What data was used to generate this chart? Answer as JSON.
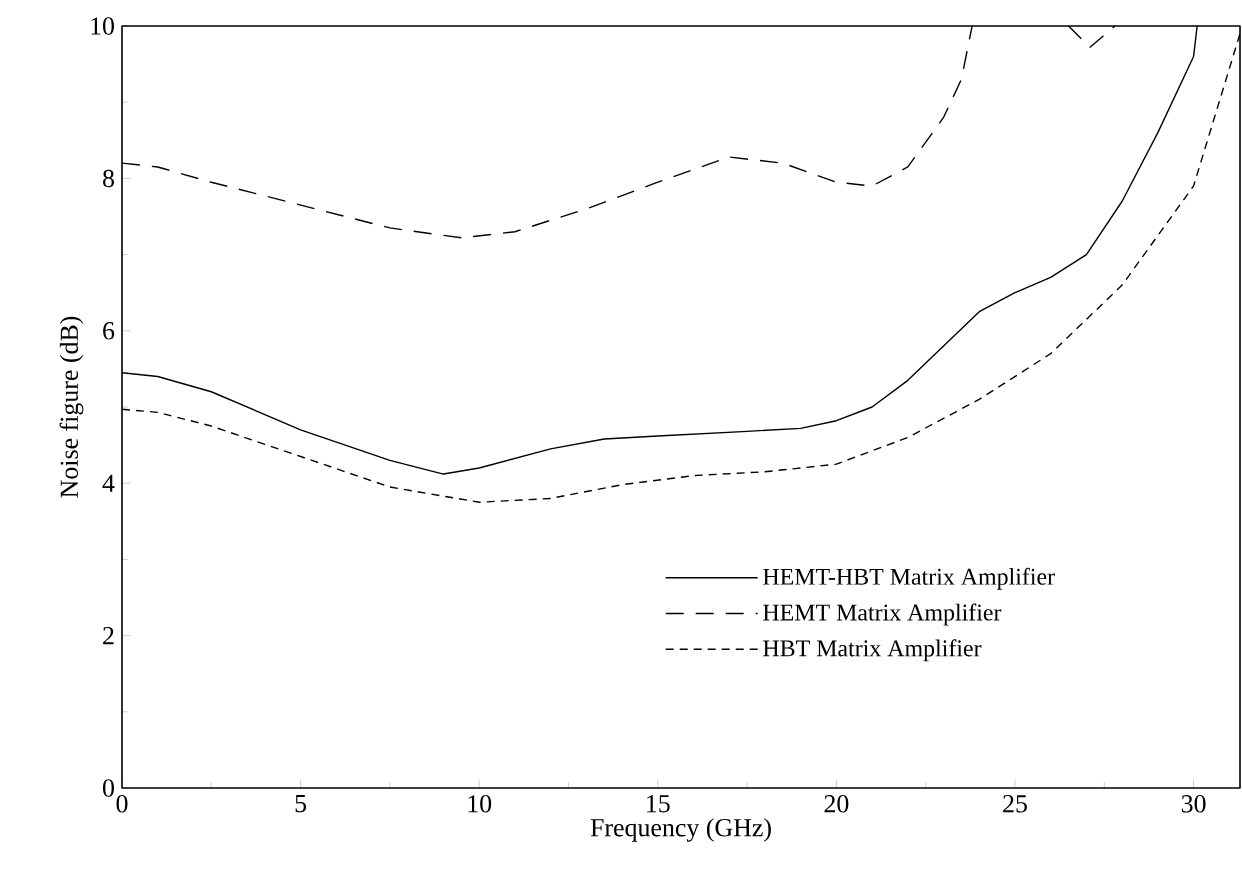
{
  "chart_data": {
    "type": "line",
    "xlabel": "Frequency (GHz)",
    "ylabel": "Noise figure (dB)",
    "xlim": [
      0,
      31.3
    ],
    "ylim": [
      0,
      10
    ],
    "xticks": [
      0,
      5,
      10,
      15,
      20,
      25,
      30
    ],
    "yticks": [
      0,
      2,
      4,
      6,
      8,
      10
    ],
    "legend": "bottom right",
    "grid": false,
    "marker": "none",
    "series": [
      {
        "name": "HEMT-HBT Matrix Amplifier",
        "color": "#000000",
        "line_style": "solid",
        "x": [
          0,
          1,
          2.5,
          5,
          7.5,
          9,
          10,
          12,
          13.5,
          15,
          17.5,
          19,
          20,
          21,
          22,
          23,
          24,
          25,
          26,
          27,
          28,
          29,
          30,
          30.1
        ],
        "values": [
          5.45,
          5.4,
          5.2,
          4.7,
          4.3,
          4.12,
          4.2,
          4.45,
          4.58,
          4.62,
          4.68,
          4.72,
          4.82,
          5.0,
          5.35,
          5.8,
          6.25,
          6.5,
          6.7,
          7.0,
          7.7,
          8.6,
          9.6,
          10
        ]
      },
      {
        "name": "HEMT Matrix Amplifier",
        "color": "#000000",
        "line_style": "dashed",
        "x": [
          0,
          1,
          2.5,
          5,
          7.5,
          9.5,
          11,
          13,
          15,
          17,
          18.5,
          20,
          21,
          22,
          23,
          23.5,
          23.8,
          25,
          26.5,
          27.1,
          27.8
        ],
        "values": [
          8.2,
          8.15,
          7.95,
          7.65,
          7.35,
          7.22,
          7.3,
          7.6,
          7.95,
          8.28,
          8.2,
          7.95,
          7.9,
          8.15,
          8.8,
          9.3,
          10,
          null,
          10,
          9.72,
          10
        ]
      },
      {
        "name": "HBT Matrix Amplifier",
        "color": "#000000",
        "line_style": "dotted",
        "x": [
          0,
          1,
          2.5,
          5,
          7.5,
          10,
          12,
          14,
          16,
          18,
          20,
          22,
          24,
          26,
          28,
          30,
          31.3
        ],
        "values": [
          4.97,
          4.93,
          4.75,
          4.35,
          3.95,
          3.75,
          3.8,
          3.98,
          4.1,
          4.15,
          4.25,
          4.6,
          5.1,
          5.7,
          6.6,
          7.9,
          9.9
        ]
      }
    ]
  }
}
